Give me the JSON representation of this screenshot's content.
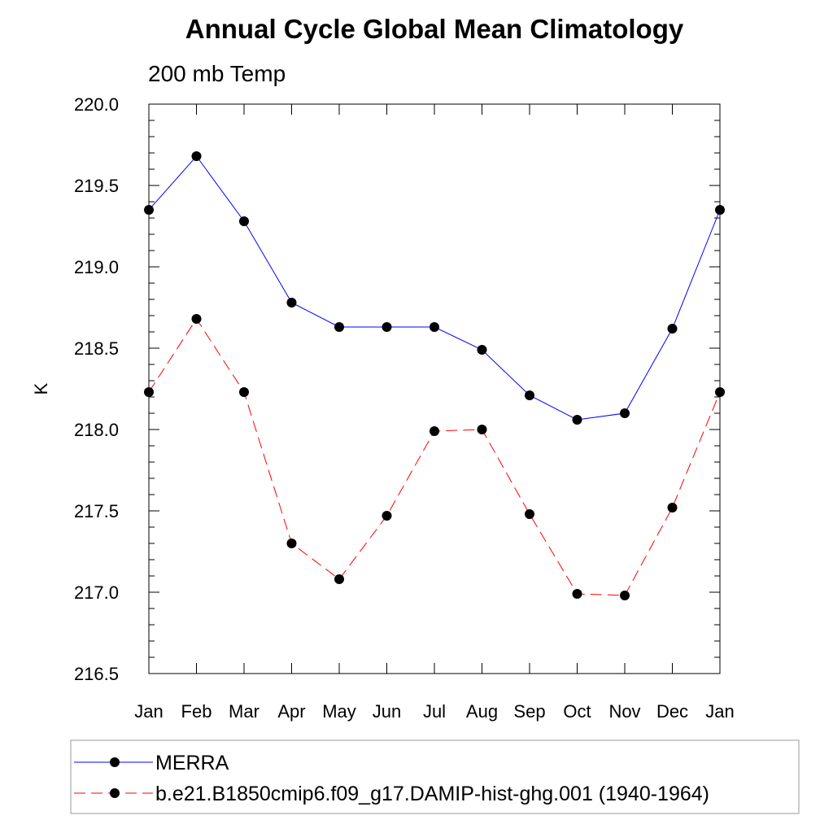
{
  "chart_data": {
    "type": "line",
    "title": "Annual Cycle Global Mean Climatology",
    "subtitle": "200 mb Temp",
    "xlabel": "",
    "ylabel": "K",
    "categories": [
      "Jan",
      "Feb",
      "Mar",
      "Apr",
      "May",
      "Jun",
      "Jul",
      "Aug",
      "Sep",
      "Oct",
      "Nov",
      "Dec",
      "Jan"
    ],
    "ylim": [
      216.5,
      220.0
    ],
    "yticks": [
      "216.5",
      "217.0",
      "217.5",
      "218.0",
      "218.5",
      "219.0",
      "219.5",
      "220.0"
    ],
    "grid": false,
    "legend_position": "bottom",
    "series": [
      {
        "name": "MERRA",
        "color": "#0000ff",
        "dash": "solid",
        "marker": "filled-circle",
        "values": [
          219.35,
          219.68,
          219.28,
          218.78,
          218.63,
          218.63,
          218.63,
          218.49,
          218.21,
          218.06,
          218.1,
          218.62,
          219.35
        ]
      },
      {
        "name": "b.e21.B1850cmip6.f09_g17.DAMIP-hist-ghg.001 (1940-1964)",
        "color": "#ff0000",
        "dash": "dashed",
        "marker": "filled-circle",
        "values": [
          218.23,
          218.68,
          218.23,
          217.3,
          217.08,
          217.47,
          217.99,
          218.0,
          217.48,
          216.99,
          216.98,
          217.52,
          218.23
        ]
      }
    ]
  }
}
